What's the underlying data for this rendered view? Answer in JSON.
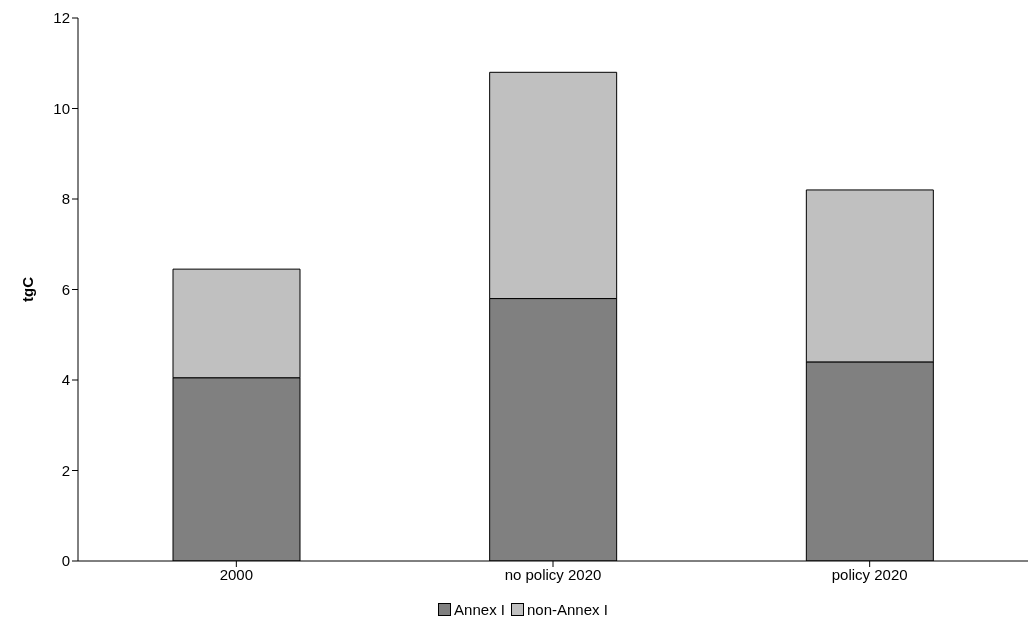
{
  "chart_data": {
    "type": "bar",
    "stacked": true,
    "ylabel": "tgC",
    "categories": [
      "2000",
      "no policy 2020",
      "policy 2020"
    ],
    "series": [
      {
        "name": "Annex I",
        "color": "#808080",
        "values": [
          4.05,
          5.8,
          4.4
        ]
      },
      {
        "name": "non-Annex I",
        "color": "#c0c0c0",
        "values": [
          2.4,
          5.0,
          3.8
        ]
      }
    ],
    "ylim": [
      0,
      12
    ],
    "yticks": [
      0,
      2,
      4,
      6,
      8,
      10,
      12
    ],
    "grid": false,
    "legend": "bottom"
  }
}
